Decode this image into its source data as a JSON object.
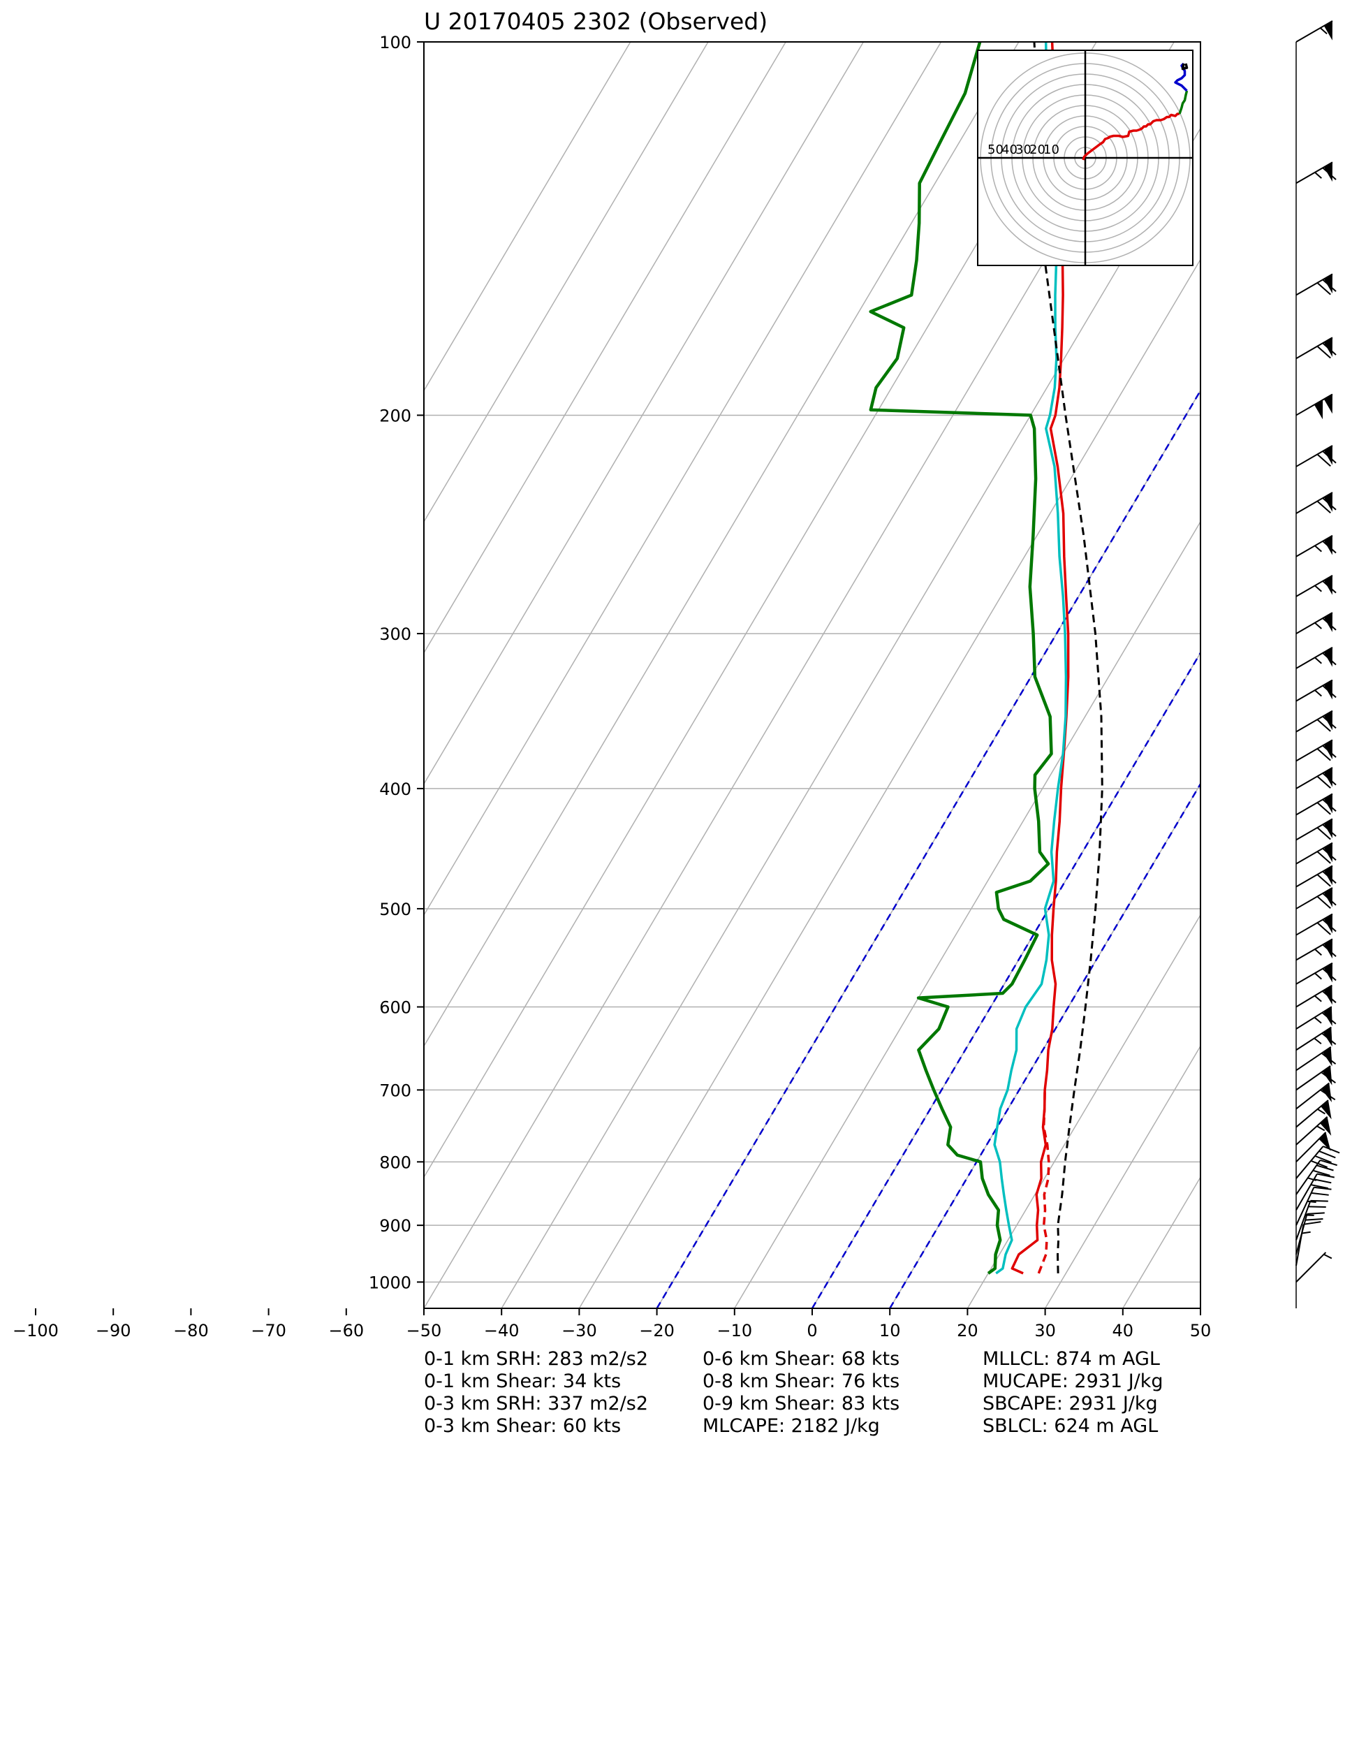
{
  "chart_data": {
    "type": "line",
    "subtype": "skew-T log-P sounding diagram",
    "title": "U 20170405 2302   (Observed)",
    "xlabel": "",
    "ylabel": "",
    "x_range": [
      -100,
      50
    ],
    "y_range": [
      1050,
      100
    ],
    "y_scale": "log",
    "grid": true,
    "x_ticks": [
      -100,
      -90,
      -80,
      -70,
      -60,
      -50,
      -40,
      -30,
      -20,
      -10,
      0,
      10,
      20,
      30,
      40,
      50
    ],
    "y_ticks": [
      100,
      200,
      300,
      400,
      500,
      600,
      700,
      800,
      900,
      1000
    ],
    "skewed_isotherms": [
      -120,
      -110,
      -100,
      -90,
      -80,
      -70,
      -60,
      -50,
      -40,
      -30,
      -20,
      -10,
      0,
      10,
      20,
      30,
      40,
      50
    ],
    "reference_lines": {
      "dashed_blue_isotherms": [
        -20,
        0
      ],
      "dashed_blue_upper_start": 10
    },
    "series": [
      {
        "color": "#e00000",
        "values": [
          [
            984,
            24.5
          ],
          [
            975,
            22.7
          ],
          [
            950,
            22.5
          ],
          [
            925,
            23.8
          ],
          [
            900,
            22.6
          ],
          [
            875,
            21.6
          ],
          [
            850,
            20.2
          ],
          [
            825,
            19.6
          ],
          [
            800,
            18.3
          ],
          [
            775,
            17.6
          ],
          [
            750,
            15.9
          ],
          [
            725,
            14.7
          ],
          [
            700,
            13.3
          ],
          [
            675,
            12.1
          ],
          [
            650,
            10.7
          ],
          [
            625,
            9.6
          ],
          [
            600,
            8.1
          ],
          [
            575,
            6.6
          ],
          [
            550,
            4.3
          ],
          [
            525,
            2.4
          ],
          [
            500,
            0.6
          ],
          [
            475,
            -1.2
          ],
          [
            450,
            -3.3
          ],
          [
            425,
            -5.3
          ],
          [
            400,
            -7.6
          ],
          [
            375,
            -9.9
          ],
          [
            350,
            -12.4
          ],
          [
            325,
            -15.2
          ],
          [
            300,
            -18.5
          ],
          [
            280,
            -21.6
          ],
          [
            260,
            -24.9
          ],
          [
            240,
            -28.3
          ],
          [
            220,
            -32.6
          ],
          [
            205,
            -36.4
          ],
          [
            200,
            -36.8
          ],
          [
            190,
            -38.4
          ],
          [
            180,
            -40.4
          ],
          [
            170,
            -42.6
          ],
          [
            160,
            -45.0
          ],
          [
            150,
            -47.7
          ],
          [
            140,
            -50.5
          ],
          [
            130,
            -54.2
          ],
          [
            120,
            -57.8
          ],
          [
            110,
            -61.5
          ],
          [
            100,
            -65.7
          ]
        ]
      },
      {
        "color": "#e00000",
        "dashed": true,
        "values": [
          [
            984,
            26.5
          ],
          [
            950,
            26.0
          ],
          [
            925,
            25.0
          ],
          [
            900,
            23.5
          ],
          [
            875,
            22.5
          ],
          [
            850,
            21.2
          ],
          [
            825,
            20.5
          ],
          [
            800,
            19.3
          ],
          [
            775,
            17.8
          ],
          [
            750,
            16.0
          ],
          [
            725,
            14.7
          ],
          [
            700,
            13.3
          ]
        ]
      },
      {
        "color": "#00bfbf",
        "values": [
          [
            984,
            21.0
          ],
          [
            975,
            21.5
          ],
          [
            950,
            20.8
          ],
          [
            925,
            20.5
          ],
          [
            900,
            19.0
          ],
          [
            875,
            17.5
          ],
          [
            850,
            16.0
          ],
          [
            825,
            14.5
          ],
          [
            800,
            13.0
          ],
          [
            775,
            11.0
          ],
          [
            750,
            10.0
          ],
          [
            725,
            9.0
          ],
          [
            700,
            8.5
          ],
          [
            675,
            7.5
          ],
          [
            650,
            6.6
          ],
          [
            625,
            5.0
          ],
          [
            600,
            4.5
          ],
          [
            575,
            4.8
          ],
          [
            550,
            3.6
          ],
          [
            525,
            2.0
          ],
          [
            500,
            -0.5
          ],
          [
            475,
            -1.5
          ],
          [
            450,
            -4.0
          ],
          [
            425,
            -6.0
          ],
          [
            400,
            -8.0
          ],
          [
            375,
            -10.0
          ],
          [
            350,
            -12.5
          ],
          [
            325,
            -15.5
          ],
          [
            300,
            -18.9
          ],
          [
            280,
            -22.0
          ],
          [
            260,
            -25.5
          ],
          [
            240,
            -29.0
          ],
          [
            220,
            -33.0
          ],
          [
            205,
            -37.0
          ],
          [
            200,
            -37.5
          ],
          [
            190,
            -39.0
          ],
          [
            180,
            -41.0
          ],
          [
            170,
            -43.5
          ],
          [
            160,
            -46.0
          ],
          [
            150,
            -48.5
          ],
          [
            140,
            -51.5
          ],
          [
            130,
            -55.0
          ],
          [
            120,
            -58.5
          ],
          [
            110,
            -62.5
          ],
          [
            100,
            -66.5
          ]
        ]
      },
      {
        "color": "#007800",
        "values": [
          [
            984,
            20.0
          ],
          [
            975,
            20.5
          ],
          [
            950,
            19.5
          ],
          [
            925,
            19.0
          ],
          [
            900,
            17.5
          ],
          [
            875,
            16.5
          ],
          [
            850,
            14.0
          ],
          [
            825,
            12.0
          ],
          [
            800,
            10.5
          ],
          [
            790,
            7.0
          ],
          [
            775,
            5.0
          ],
          [
            750,
            4.0
          ],
          [
            725,
            1.5
          ],
          [
            700,
            -1.0
          ],
          [
            675,
            -3.5
          ],
          [
            650,
            -6.0
          ],
          [
            625,
            -5.0
          ],
          [
            600,
            -5.5
          ],
          [
            590,
            -10.0
          ],
          [
            585,
            0.5
          ],
          [
            575,
            1.0
          ],
          [
            550,
            0.8
          ],
          [
            525,
            0.5
          ],
          [
            510,
            -5.0
          ],
          [
            500,
            -6.5
          ],
          [
            485,
            -8.0
          ],
          [
            475,
            -4.5
          ],
          [
            460,
            -3.5
          ],
          [
            450,
            -5.5
          ],
          [
            425,
            -8.0
          ],
          [
            400,
            -11.0
          ],
          [
            390,
            -12.0
          ],
          [
            375,
            -11.5
          ],
          [
            350,
            -14.5
          ],
          [
            325,
            -19.5
          ],
          [
            300,
            -23.0
          ],
          [
            275,
            -27.0
          ],
          [
            250,
            -30.5
          ],
          [
            225,
            -34.5
          ],
          [
            205,
            -38.5
          ],
          [
            200,
            -40.0
          ],
          [
            198,
            -61.0
          ],
          [
            190,
            -62.0
          ],
          [
            180,
            -61.5
          ],
          [
            170,
            -63.0
          ],
          [
            165,
            -68.5
          ],
          [
            160,
            -64.5
          ],
          [
            150,
            -66.5
          ],
          [
            140,
            -69.0
          ],
          [
            130,
            -72.0
          ],
          [
            120,
            -72.5
          ],
          [
            110,
            -73.0
          ],
          [
            100,
            -75.0
          ]
        ]
      },
      {
        "color": "#000000",
        "dashed": true,
        "values": [
          [
            984,
            29.0
          ],
          [
            950,
            27.5
          ],
          [
            925,
            26.5
          ],
          [
            900,
            25.3
          ],
          [
            850,
            23.5
          ],
          [
            800,
            21.4
          ],
          [
            750,
            19.3
          ],
          [
            700,
            17.1
          ],
          [
            650,
            14.8
          ],
          [
            600,
            12.2
          ],
          [
            550,
            9.3
          ],
          [
            500,
            6.0
          ],
          [
            450,
            2.2
          ],
          [
            400,
            -2.3
          ],
          [
            350,
            -7.9
          ],
          [
            300,
            -15.0
          ],
          [
            250,
            -24.0
          ],
          [
            200,
            -35.5
          ],
          [
            150,
            -50.0
          ],
          [
            100,
            -68.0
          ]
        ]
      }
    ],
    "wind_barbs": [
      {
        "p": 1000,
        "spd": 5,
        "dir": 225
      },
      {
        "p": 970,
        "spd": 15,
        "dir": 190
      },
      {
        "p": 950,
        "spd": 20,
        "dir": 195
      },
      {
        "p": 925,
        "spd": 25,
        "dir": 200
      },
      {
        "p": 900,
        "spd": 25,
        "dir": 205
      },
      {
        "p": 875,
        "spd": 30,
        "dir": 210
      },
      {
        "p": 850,
        "spd": 35,
        "dir": 215
      },
      {
        "p": 825,
        "spd": 40,
        "dir": 220
      },
      {
        "p": 800,
        "spd": 50,
        "dir": 225
      },
      {
        "p": 775,
        "spd": 55,
        "dir": 228
      },
      {
        "p": 750,
        "spd": 55,
        "dir": 230
      },
      {
        "p": 725,
        "spd": 60,
        "dir": 232
      },
      {
        "p": 700,
        "spd": 60,
        "dir": 235
      },
      {
        "p": 675,
        "spd": 60,
        "dir": 236
      },
      {
        "p": 650,
        "spd": 65,
        "dir": 237
      },
      {
        "p": 625,
        "spd": 65,
        "dir": 238
      },
      {
        "p": 600,
        "spd": 65,
        "dir": 239
      },
      {
        "p": 575,
        "spd": 65,
        "dir": 240
      },
      {
        "p": 550,
        "spd": 65,
        "dir": 240
      },
      {
        "p": 525,
        "spd": 70,
        "dir": 240
      },
      {
        "p": 500,
        "spd": 70,
        "dir": 240
      },
      {
        "p": 480,
        "spd": 70,
        "dir": 240
      },
      {
        "p": 460,
        "spd": 70,
        "dir": 240
      },
      {
        "p": 440,
        "spd": 70,
        "dir": 240
      },
      {
        "p": 420,
        "spd": 70,
        "dir": 240
      },
      {
        "p": 400,
        "spd": 70,
        "dir": 240
      },
      {
        "p": 380,
        "spd": 70,
        "dir": 240
      },
      {
        "p": 360,
        "spd": 70,
        "dir": 240
      },
      {
        "p": 340,
        "spd": 65,
        "dir": 240
      },
      {
        "p": 320,
        "spd": 65,
        "dir": 240
      },
      {
        "p": 300,
        "spd": 65,
        "dir": 240
      },
      {
        "p": 280,
        "spd": 65,
        "dir": 240
      },
      {
        "p": 260,
        "spd": 65,
        "dir": 240
      },
      {
        "p": 240,
        "spd": 70,
        "dir": 240
      },
      {
        "p": 220,
        "spd": 70,
        "dir": 240
      },
      {
        "p": 200,
        "spd": 100,
        "dir": 240
      },
      {
        "p": 180,
        "spd": 70,
        "dir": 240
      },
      {
        "p": 160,
        "spd": 70,
        "dir": 240
      },
      {
        "p": 130,
        "spd": 65,
        "dir": 240
      },
      {
        "p": 100,
        "spd": 55,
        "dir": 240
      }
    ],
    "hodograph": {
      "ring_labels": [
        "50",
        "40",
        "30",
        "20",
        "10"
      ],
      "rings": [
        10,
        20,
        30,
        40,
        50,
        60,
        70,
        80,
        90,
        100
      ],
      "segments": [
        {
          "color": "#e00000",
          "points": [
            [
              -2,
              -2
            ],
            [
              -1,
              1
            ],
            [
              2,
              4
            ],
            [
              6,
              7
            ],
            [
              10,
              10
            ],
            [
              14,
              13
            ],
            [
              17,
              15
            ],
            [
              19,
              18
            ],
            [
              22,
              19
            ],
            [
              23,
              20
            ],
            [
              27,
              21
            ],
            [
              32,
              21
            ],
            [
              36,
              20
            ],
            [
              41,
              21
            ],
            [
              42,
              25
            ],
            [
              46,
              26
            ],
            [
              49,
              26
            ],
            [
              52,
              27
            ],
            [
              54,
              28
            ],
            [
              56,
              30
            ],
            [
              58,
              30
            ],
            [
              60,
              32
            ],
            [
              62,
              32
            ],
            [
              65,
              35
            ],
            [
              68,
              36
            ],
            [
              72,
              36
            ],
            [
              75,
              37
            ],
            [
              78,
              39
            ],
            [
              80,
              39
            ],
            [
              82,
              41
            ],
            [
              86,
              40
            ],
            [
              88,
              42
            ],
            [
              90,
              42
            ]
          ]
        },
        {
          "color": "#007800",
          "points": [
            [
              90,
              42
            ],
            [
              92,
              48
            ],
            [
              93,
              52
            ],
            [
              95,
              55
            ],
            [
              96,
              60
            ],
            [
              97,
              64
            ]
          ]
        },
        {
          "color": "#0000cc",
          "points": [
            [
              97,
              64
            ],
            [
              92,
              69
            ],
            [
              86,
              72
            ],
            [
              88,
              74
            ],
            [
              92,
              76
            ],
            [
              95,
              79
            ],
            [
              95,
              83
            ],
            [
              93,
              86
            ],
            [
              92,
              88
            ],
            [
              94,
              90
            ]
          ]
        },
        {
          "color": "#000000",
          "points": [
            [
              94,
              90
            ],
            [
              93,
              85
            ],
            [
              97,
              86
            ],
            [
              96,
              90
            ]
          ]
        }
      ]
    }
  },
  "stats": {
    "col1": [
      "0-1 km SRH: 283 m2/s2",
      "0-1 km Shear: 34 kts",
      "0-3 km SRH: 337 m2/s2",
      "0-3 km Shear: 60 kts"
    ],
    "col2": [
      "0-6 km Shear: 68 kts",
      "0-8 km Shear: 76 kts",
      "0-9 km Shear: 83 kts",
      "MLCAPE: 2182 J/kg"
    ],
    "col3": [
      "MLLCL: 874 m AGL",
      "MUCAPE: 2931 J/kg",
      "SBCAPE: 2931 J/kg",
      "SBLCL: 624 m AGL"
    ]
  }
}
